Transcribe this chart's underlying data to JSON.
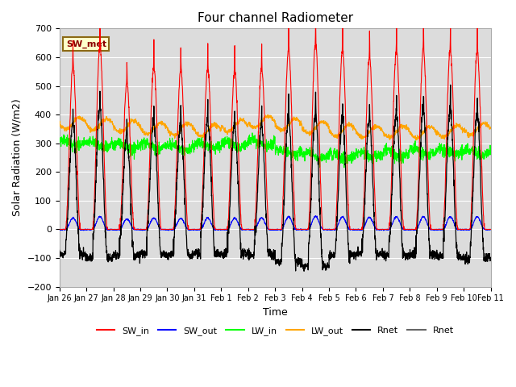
{
  "title": "Four channel Radiometer",
  "xlabel": "Time",
  "ylabel": "Solar Radiation (W/m2)",
  "ylim": [
    -200,
    700
  ],
  "yticks": [
    -200,
    -100,
    0,
    100,
    200,
    300,
    400,
    500,
    600,
    700
  ],
  "plot_bg_color": "#dcdcdc",
  "annotation_text": "SW_met",
  "annotation_color": "#8B0000",
  "annotation_bg": "#ffffcc",
  "annotation_border": "#8B6914",
  "num_days": 16,
  "sw_peaks": [
    570,
    635,
    510,
    570,
    555,
    560,
    555,
    560,
    630,
    650,
    625,
    600,
    625,
    630,
    627,
    625
  ],
  "lw_out_base": [
    370,
    365,
    358,
    352,
    348,
    345,
    360,
    375,
    365,
    355,
    345,
    340,
    340,
    338,
    342,
    350
  ],
  "lw_in_base": [
    300,
    295,
    290,
    288,
    285,
    290,
    295,
    300,
    270,
    258,
    255,
    260,
    265,
    270,
    272,
    268
  ],
  "rnet_night": [
    -85,
    -100,
    -90,
    -85,
    -88,
    -85,
    -85,
    -85,
    -115,
    -130,
    -90,
    -85,
    -90,
    -88,
    -95,
    -100
  ]
}
